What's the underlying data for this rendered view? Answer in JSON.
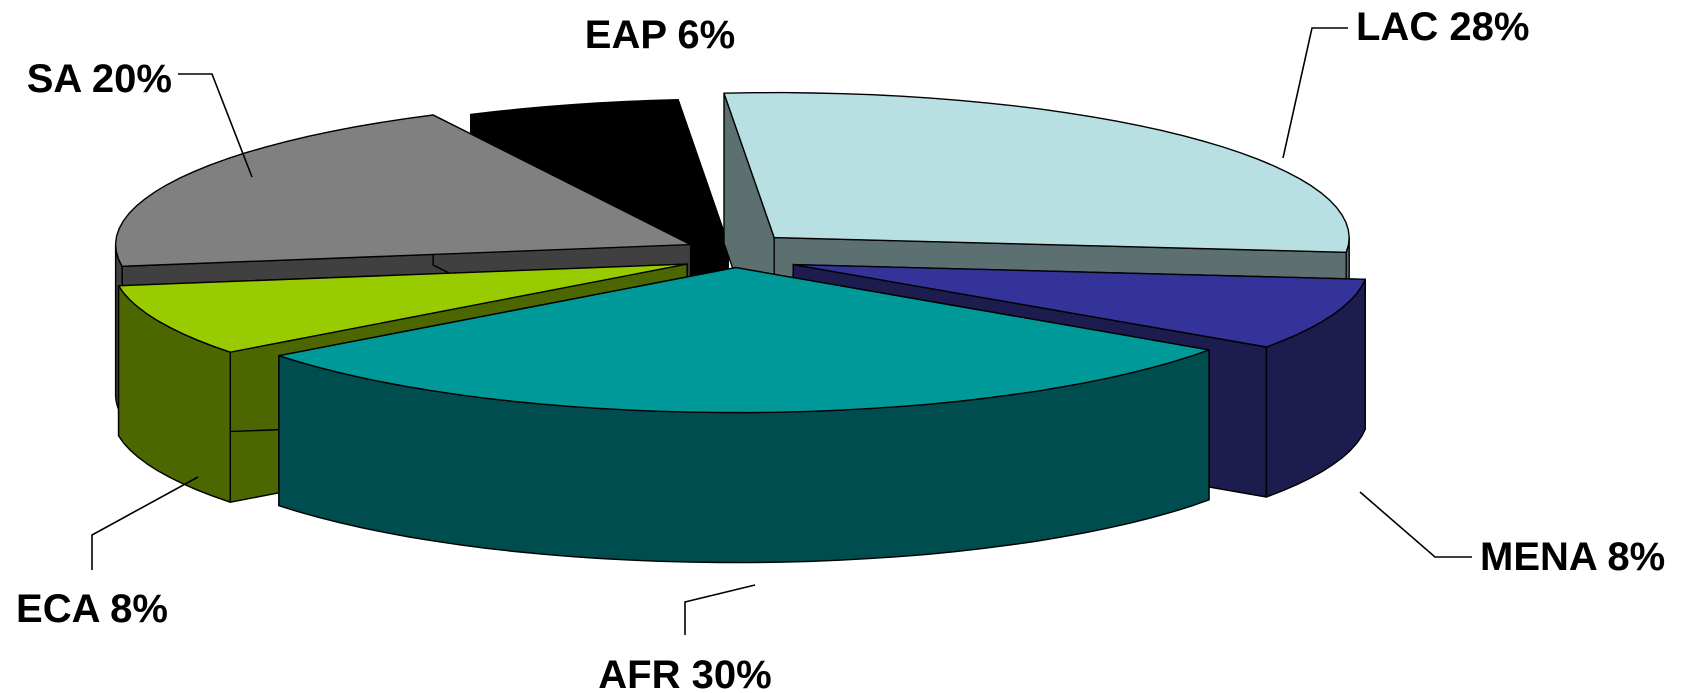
{
  "chart_data": {
    "type": "pie",
    "style": "3d-exploded",
    "slices": [
      {
        "label": "LAC",
        "value": 28,
        "text": "LAC 28%",
        "color": "#b8e0e3",
        "side_color": "#5c7072"
      },
      {
        "label": "MENA",
        "value": 8,
        "text": "MENA 8%",
        "color": "#333399",
        "side_color": "#1c1c4f"
      },
      {
        "label": "AFR",
        "value": 30,
        "text": "AFR 30%",
        "color": "#009999",
        "side_color": "#004d4f"
      },
      {
        "label": "ECA",
        "value": 8,
        "text": "ECA 8%",
        "color": "#99cc00",
        "side_color": "#4c6600"
      },
      {
        "label": "SA",
        "value": 20,
        "text": "SA 20%",
        "color": "#808080",
        "side_color": "#404040"
      },
      {
        "label": "EAP",
        "value": 6,
        "text": "EAP 6%",
        "color": "#000000",
        "side_color": "#000000"
      }
    ],
    "legend": "none"
  }
}
